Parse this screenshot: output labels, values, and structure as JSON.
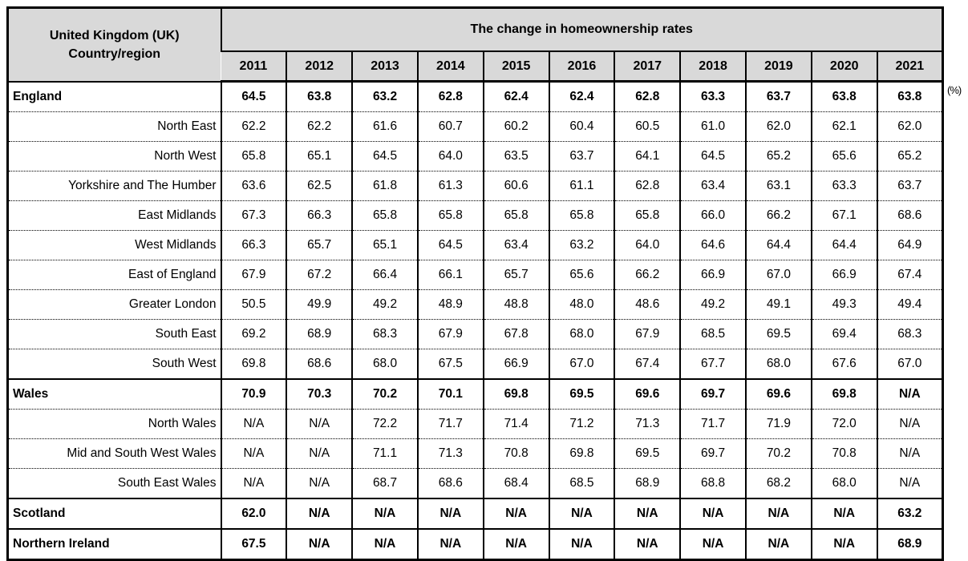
{
  "table": {
    "corner_header": {
      "line1": "United Kingdom (UK)",
      "line2": "Country/region"
    },
    "na_label": "N/A",
    "unit_label": "(%)"
  },
  "colors": {
    "header_bg": "#d9d9d9",
    "border": "#000000",
    "background": "#ffffff"
  },
  "chart_data": {
    "type": "table",
    "title": "The change in homeownership rates",
    "unit": "%",
    "categories": [
      "2011",
      "2012",
      "2013",
      "2014",
      "2015",
      "2016",
      "2017",
      "2018",
      "2019",
      "2020",
      "2021"
    ],
    "series": [
      {
        "name": "England",
        "level": "country",
        "values": [
          64.5,
          63.8,
          63.2,
          62.8,
          62.4,
          62.4,
          62.8,
          63.3,
          63.7,
          63.8,
          63.8
        ]
      },
      {
        "name": "North East",
        "level": "sub",
        "values": [
          62.2,
          62.2,
          61.6,
          60.7,
          60.2,
          60.4,
          60.5,
          61.0,
          62.0,
          62.1,
          62.0
        ]
      },
      {
        "name": "North West",
        "level": "sub",
        "values": [
          65.8,
          65.1,
          64.5,
          64.0,
          63.5,
          63.7,
          64.1,
          64.5,
          65.2,
          65.6,
          65.2
        ]
      },
      {
        "name": "Yorkshire and The Humber",
        "level": "sub",
        "values": [
          63.6,
          62.5,
          61.8,
          61.3,
          60.6,
          61.1,
          62.8,
          63.4,
          63.1,
          63.3,
          63.7
        ]
      },
      {
        "name": "East Midlands",
        "level": "sub",
        "values": [
          67.3,
          66.3,
          65.8,
          65.8,
          65.8,
          65.8,
          65.8,
          66.0,
          66.2,
          67.1,
          68.6
        ]
      },
      {
        "name": "West Midlands",
        "level": "sub",
        "values": [
          66.3,
          65.7,
          65.1,
          64.5,
          63.4,
          63.2,
          64.0,
          64.6,
          64.4,
          64.4,
          64.9
        ]
      },
      {
        "name": "East of England",
        "level": "sub",
        "values": [
          67.9,
          67.2,
          66.4,
          66.1,
          65.7,
          65.6,
          66.2,
          66.9,
          67.0,
          66.9,
          67.4
        ]
      },
      {
        "name": "Greater London",
        "level": "sub",
        "values": [
          50.5,
          49.9,
          49.2,
          48.9,
          48.8,
          48.0,
          48.6,
          49.2,
          49.1,
          49.3,
          49.4
        ]
      },
      {
        "name": "South East",
        "level": "sub",
        "values": [
          69.2,
          68.9,
          68.3,
          67.9,
          67.8,
          68.0,
          67.9,
          68.5,
          69.5,
          69.4,
          68.3
        ]
      },
      {
        "name": "South West",
        "level": "sub",
        "values": [
          69.8,
          68.6,
          68.0,
          67.5,
          66.9,
          67.0,
          67.4,
          67.7,
          68.0,
          67.6,
          67.0
        ]
      },
      {
        "name": "Wales",
        "level": "country",
        "values": [
          70.9,
          70.3,
          70.2,
          70.1,
          69.8,
          69.5,
          69.6,
          69.7,
          69.6,
          69.8,
          null
        ]
      },
      {
        "name": "North Wales",
        "level": "sub",
        "values": [
          null,
          null,
          72.2,
          71.7,
          71.4,
          71.2,
          71.3,
          71.7,
          71.9,
          72.0,
          null
        ]
      },
      {
        "name": "Mid and South West Wales",
        "level": "sub",
        "values": [
          null,
          null,
          71.1,
          71.3,
          70.8,
          69.8,
          69.5,
          69.7,
          70.2,
          70.8,
          null
        ]
      },
      {
        "name": "South East Wales",
        "level": "sub",
        "values": [
          null,
          null,
          68.7,
          68.6,
          68.4,
          68.5,
          68.9,
          68.8,
          68.2,
          68.0,
          null
        ]
      },
      {
        "name": "Scotland",
        "level": "country",
        "values": [
          62.0,
          null,
          null,
          null,
          null,
          null,
          null,
          null,
          null,
          null,
          63.2
        ]
      },
      {
        "name": "Northern Ireland",
        "level": "country",
        "values": [
          67.5,
          null,
          null,
          null,
          null,
          null,
          null,
          null,
          null,
          null,
          68.9
        ]
      }
    ]
  }
}
